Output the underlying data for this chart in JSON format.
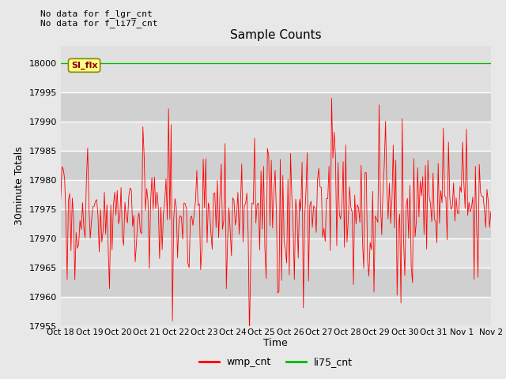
{
  "title": "Sample Counts",
  "xlabel": "Time",
  "ylabel": "30minute Totals",
  "ylim": [
    17955,
    18003
  ],
  "yticks": [
    17955,
    17960,
    17965,
    17970,
    17975,
    17980,
    17985,
    17990,
    17995,
    18000
  ],
  "xtick_labels": [
    "Oct 18",
    "Oct 19",
    "Oct 20",
    "Oct 21",
    "Oct 22",
    "Oct 23",
    "Oct 24",
    "Oct 25",
    "Oct 26",
    "Oct 27",
    "Oct 28",
    "Oct 29",
    "Oct 30",
    "Oct 31",
    "Nov 1",
    "Nov 2"
  ],
  "no_data_text1": "No data for f_lgr_cnt",
  "no_data_text2": "No data for f_li77_cnt",
  "si_flx_label": "SI_flx",
  "green_line_y": 18000,
  "red_line_mean": 17975,
  "red_color": "#ff0000",
  "green_color": "#00bb00",
  "bg_color": "#e8e8e8",
  "plot_bg_color": "#e0e0e0",
  "band_color1": "#e0e0e0",
  "band_color2": "#d0d0d0",
  "legend_labels": [
    "wmp_cnt",
    "li75_cnt"
  ],
  "n_points": 336,
  "seed": 42
}
